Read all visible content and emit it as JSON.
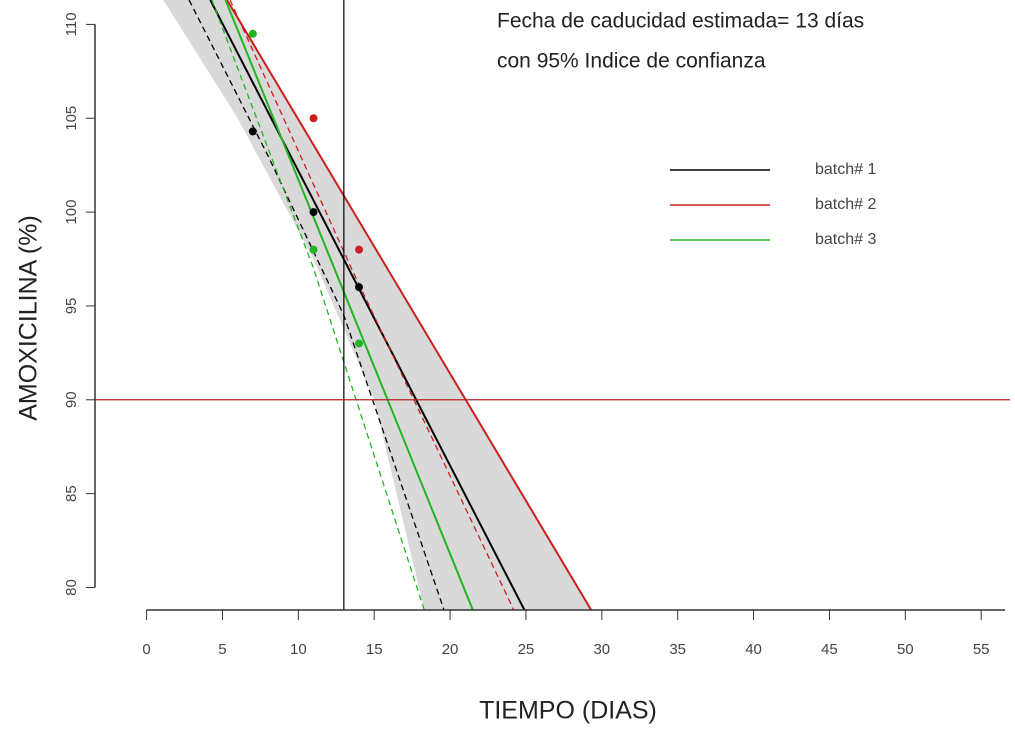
{
  "chart_data": {
    "type": "line",
    "annotations": [
      "Fecha de caducidad estimada= 13 días",
      "con 95% Indice de confianza"
    ],
    "x_label": "TIEMPO (DIAS)",
    "y_label": "AMOXICILINA   (%)",
    "xlim": [
      -3.4,
      56.9
    ],
    "ylim": [
      78.8,
      111.3
    ],
    "xticks": [
      0,
      5,
      10,
      15,
      20,
      25,
      30,
      35,
      40,
      45,
      50,
      55
    ],
    "yticks": [
      80,
      85,
      90,
      95,
      100,
      105,
      110
    ],
    "vline": {
      "x": 13,
      "color": "#000000"
    },
    "hline": {
      "y": 90,
      "color": "#b22222"
    },
    "band": {
      "x": [
        1.1,
        6,
        11,
        15,
        18.3,
        29.3,
        5.3
      ],
      "y": [
        111.3,
        105,
        97.5,
        90,
        78.8,
        78.8,
        111.3
      ],
      "color": "#d9d9d9"
    },
    "series": [
      {
        "name": "batch# 1",
        "color": "#000000",
        "x": [
          7,
          11,
          14
        ],
        "values": [
          104.3,
          100,
          96
        ],
        "fit_x": [
          4.2,
          24.9
        ],
        "fit_y": [
          111.3,
          78.8
        ],
        "ci_x": [
          2.8,
          8,
          13,
          19.6
        ],
        "ci_y": [
          111.3,
          103,
          94.5,
          78.8
        ]
      },
      {
        "name": "batch# 2",
        "color": "#cc1f1f",
        "x": [
          11,
          14
        ],
        "values": [
          105,
          98
        ],
        "fit_x": [
          5.3,
          29.3
        ],
        "fit_y": [
          111.3,
          78.8
        ],
        "ci_x": [
          5.5,
          13.5,
          24.2
        ],
        "ci_y": [
          111.3,
          97,
          78.8
        ]
      },
      {
        "name": "batch# 3",
        "color": "#22b522",
        "x": [
          7,
          11,
          14
        ],
        "values": [
          109.5,
          98,
          93
        ],
        "fit_x": [
          5.2,
          21.5
        ],
        "fit_y": [
          111.3,
          78.8
        ],
        "ci_x": [
          4.3,
          11,
          18.3
        ],
        "ci_y": [
          111.3,
          97,
          78.8
        ]
      }
    ]
  }
}
